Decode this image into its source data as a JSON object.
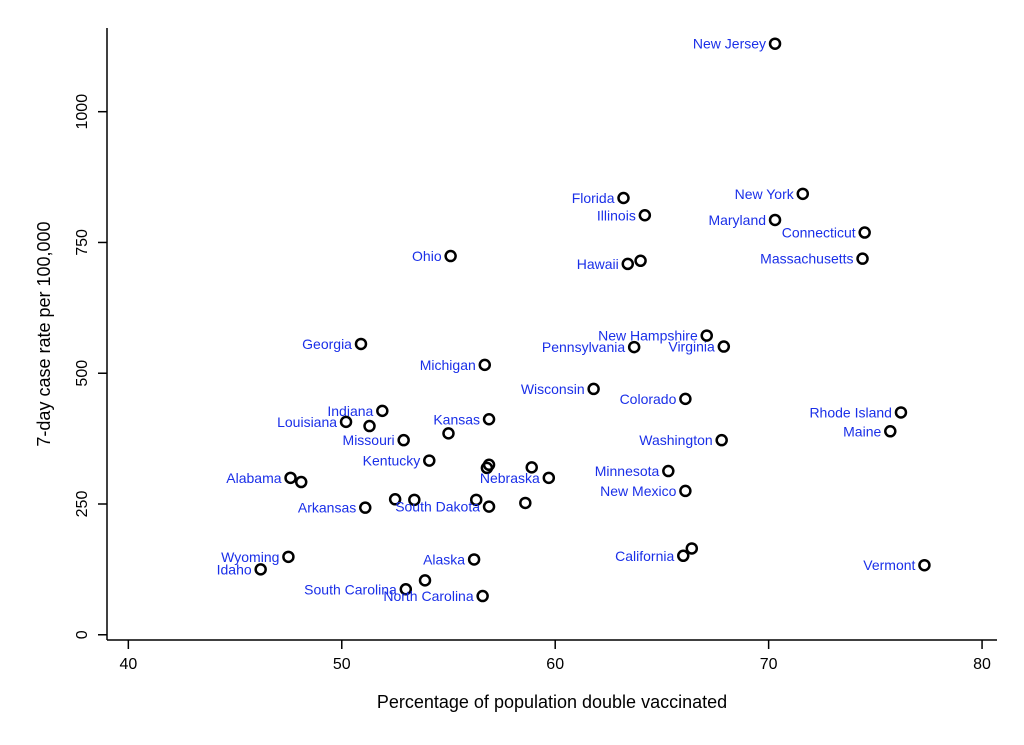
{
  "chart_data": {
    "type": "scatter",
    "xlabel": "Percentage of population double vaccinated",
    "ylabel": "7-day case rate per 100,000",
    "xlim": [
      39,
      80.7
    ],
    "ylim": [
      -10,
      1160
    ],
    "xticks": [
      40,
      50,
      60,
      70,
      80
    ],
    "yticks": [
      0,
      250,
      500,
      750,
      1000
    ],
    "grid": false,
    "colors": {
      "label": "#1a2fe8",
      "point": "#000000"
    },
    "points": [
      {
        "label": "New Jersey",
        "x": 70.3,
        "y": 1130
      },
      {
        "label": "New York",
        "x": 71.6,
        "y": 843
      },
      {
        "label": "Florida",
        "x": 63.2,
        "y": 835
      },
      {
        "label": "Illinois",
        "x": 64.2,
        "y": 802
      },
      {
        "label": "Maryland",
        "x": 70.3,
        "y": 793
      },
      {
        "label": "Connecticut",
        "x": 74.5,
        "y": 769
      },
      {
        "label": "Ohio",
        "x": 55.1,
        "y": 724
      },
      {
        "label": "Hawaii",
        "x": 63.4,
        "y": 709
      },
      {
        "label": "",
        "x": 64.0,
        "y": 715
      },
      {
        "label": "Massachusetts",
        "x": 74.4,
        "y": 719
      },
      {
        "label": "New Hampshire",
        "x": 67.1,
        "y": 572
      },
      {
        "label": "Virginia",
        "x": 67.9,
        "y": 551
      },
      {
        "label": "Pennsylvania",
        "x": 63.7,
        "y": 550
      },
      {
        "label": "Georgia",
        "x": 50.9,
        "y": 556
      },
      {
        "label": "Michigan",
        "x": 56.7,
        "y": 516
      },
      {
        "label": "Wisconsin",
        "x": 61.8,
        "y": 470
      },
      {
        "label": "Colorado",
        "x": 66.1,
        "y": 451
      },
      {
        "label": "Rhode Island",
        "x": 76.2,
        "y": 425
      },
      {
        "label": "Indiana",
        "x": 51.9,
        "y": 428
      },
      {
        "label": "Louisiana",
        "x": 50.2,
        "y": 407
      },
      {
        "label": "",
        "x": 51.3,
        "y": 399
      },
      {
        "label": "Kansas",
        "x": 56.9,
        "y": 412
      },
      {
        "label": "",
        "x": 55.0,
        "y": 385
      },
      {
        "label": "Maine",
        "x": 75.7,
        "y": 389
      },
      {
        "label": "Missouri",
        "x": 52.9,
        "y": 372
      },
      {
        "label": "Washington",
        "x": 67.8,
        "y": 372
      },
      {
        "label": "Kentucky",
        "x": 54.1,
        "y": 333
      },
      {
        "label": "",
        "x": 56.9,
        "y": 325
      },
      {
        "label": "",
        "x": 56.8,
        "y": 319
      },
      {
        "label": "",
        "x": 58.9,
        "y": 320
      },
      {
        "label": "Nebraska",
        "x": 59.7,
        "y": 300
      },
      {
        "label": "Minnesota",
        "x": 65.3,
        "y": 313
      },
      {
        "label": "Alabama",
        "x": 47.6,
        "y": 300
      },
      {
        "label": "",
        "x": 48.1,
        "y": 292
      },
      {
        "label": "New Mexico",
        "x": 66.1,
        "y": 275
      },
      {
        "label": "",
        "x": 52.5,
        "y": 259
      },
      {
        "label": "",
        "x": 53.4,
        "y": 258
      },
      {
        "label": "",
        "x": 56.3,
        "y": 258
      },
      {
        "label": "",
        "x": 58.6,
        "y": 252
      },
      {
        "label": "Arkansas",
        "x": 51.1,
        "y": 243
      },
      {
        "label": "South Dakota",
        "x": 56.9,
        "y": 245
      },
      {
        "label": "",
        "x": 66.4,
        "y": 165
      },
      {
        "label": "California",
        "x": 66.0,
        "y": 151
      },
      {
        "label": "Vermont",
        "x": 77.3,
        "y": 133
      },
      {
        "label": "Wyoming",
        "x": 47.5,
        "y": 149
      },
      {
        "label": "Alaska",
        "x": 56.2,
        "y": 144
      },
      {
        "label": "Idaho",
        "x": 46.2,
        "y": 125
      },
      {
        "label": "",
        "x": 53.9,
        "y": 104
      },
      {
        "label": "South Carolina",
        "x": 53.0,
        "y": 87
      },
      {
        "label": "North Carolina",
        "x": 56.6,
        "y": 74
      }
    ]
  }
}
